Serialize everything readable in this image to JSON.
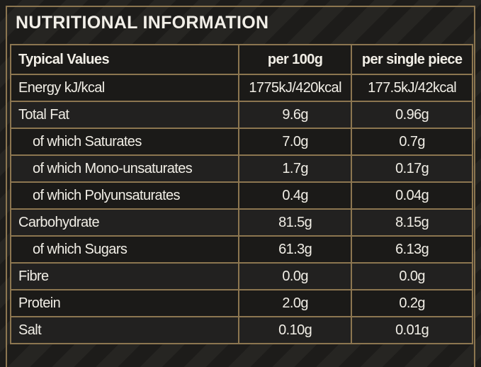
{
  "title": "NUTRITIONAL INFORMATION",
  "table": {
    "header": [
      "Typical Values",
      "per 100g",
      "per single piece"
    ],
    "rows": [
      [
        "Energy kJ/kcal",
        "1775kJ/420kcal",
        "177.5kJ/42kcal"
      ],
      [
        "Total Fat",
        "9.6g",
        "0.96g"
      ],
      [
        "of which Saturates",
        "7.0g",
        "0.7g"
      ],
      [
        "of which Mono-unsaturates",
        "1.7g",
        "0.17g"
      ],
      [
        "of which Polyunsaturates",
        "0.4g",
        "0.04g"
      ],
      [
        "Carbohydrate",
        "81.5g",
        "8.15g"
      ],
      [
        "of which Sugars",
        "61.3g",
        "6.13g"
      ],
      [
        "Fibre",
        "0.0g",
        "0.0g"
      ],
      [
        "Protein",
        "2.0g",
        "0.2g"
      ],
      [
        "Salt",
        "0.10g",
        "0.01g"
      ]
    ]
  }
}
